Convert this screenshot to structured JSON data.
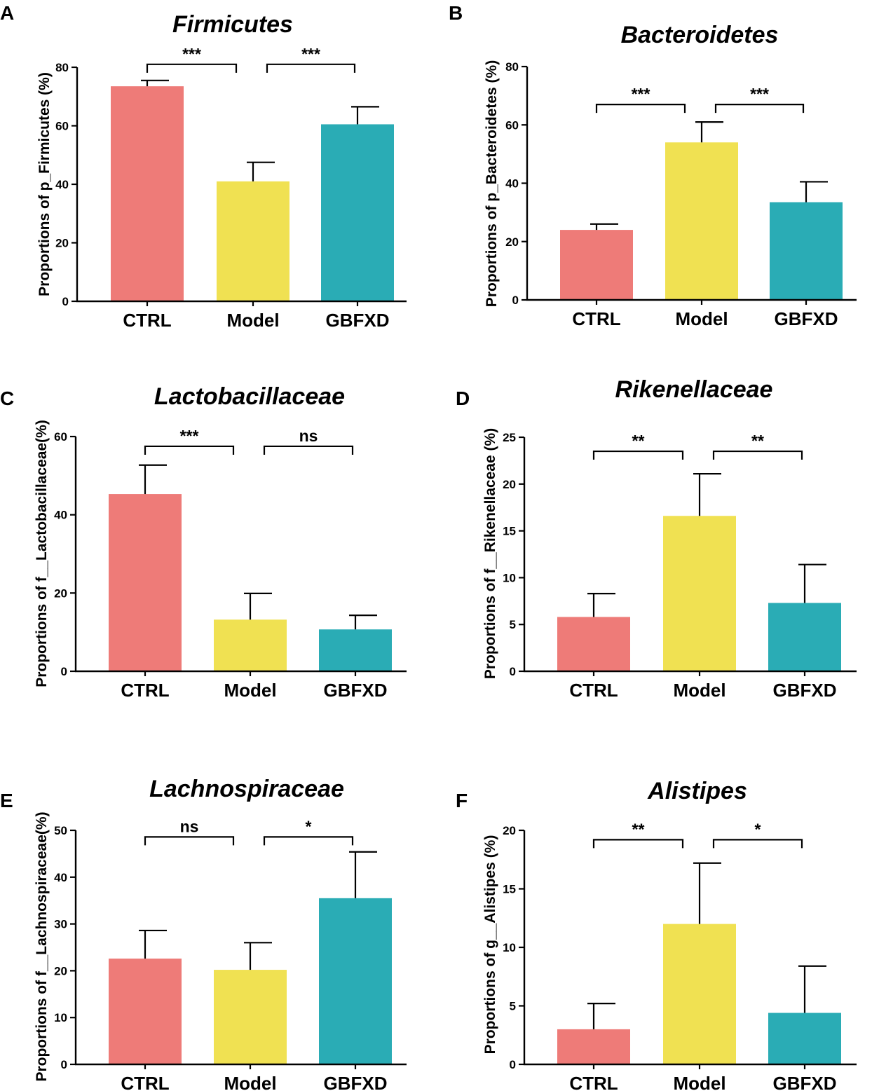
{
  "figure": {
    "categories": [
      "CTRL",
      "Model",
      "GBFXD"
    ],
    "colors": {
      "CTRL": "#ee7b78",
      "Model": "#f0e152",
      "GBFXD": "#2aacb5"
    }
  },
  "chart_data": [
    {
      "panel": "A",
      "type": "bar",
      "title": "Firmicutes",
      "ylabel": "Proportions of p_Firmicutes (%)",
      "categories": [
        "CTRL",
        "Model",
        "GBFXD"
      ],
      "values": [
        73.5,
        41,
        60.5
      ],
      "errors": [
        2,
        6.5,
        6
      ],
      "ylim": [
        0,
        80
      ],
      "yticks": [
        0,
        20,
        40,
        60,
        80
      ],
      "comparisons": [
        {
          "from": "CTRL",
          "to": "Model",
          "label": "***",
          "y": 81
        },
        {
          "from": "Model",
          "to": "GBFXD",
          "label": "***",
          "y": 81
        }
      ]
    },
    {
      "panel": "B",
      "type": "bar",
      "title": "Bacteroidetes",
      "ylabel": "Proportions of p_Bacteroidetes (%)",
      "categories": [
        "CTRL",
        "Model",
        "GBFXD"
      ],
      "values": [
        24,
        54,
        33.5
      ],
      "errors": [
        2,
        7,
        7
      ],
      "ylim": [
        0,
        80
      ],
      "yticks": [
        0,
        20,
        40,
        60,
        80
      ],
      "comparisons": [
        {
          "from": "CTRL",
          "to": "Model",
          "label": "***",
          "y": 67
        },
        {
          "from": "Model",
          "to": "GBFXD",
          "label": "***",
          "y": 67
        }
      ]
    },
    {
      "panel": "C",
      "type": "bar",
      "title": "Lactobacillaceae",
      "ylabel": "Proportions of f__Lactobacillaceae(%)",
      "categories": [
        "CTRL",
        "Model",
        "GBFXD"
      ],
      "values": [
        45.3,
        13.2,
        10.7
      ],
      "errors": [
        7.4,
        6.7,
        3.6
      ],
      "ylim": [
        0,
        60
      ],
      "yticks": [
        0,
        20,
        40,
        60
      ],
      "comparisons": [
        {
          "from": "CTRL",
          "to": "Model",
          "label": "***",
          "y": 57.5
        },
        {
          "from": "Model",
          "to": "GBFXD",
          "label": "ns",
          "y": 57.5
        }
      ]
    },
    {
      "panel": "D",
      "type": "bar",
      "title": "Rikenellaceae",
      "ylabel": "Proportions of f__Rikenellaceae (%)",
      "categories": [
        "CTRL",
        "Model",
        "GBFXD"
      ],
      "values": [
        5.8,
        16.6,
        7.3
      ],
      "errors": [
        2.5,
        4.5,
        4.1
      ],
      "ylim": [
        0,
        25
      ],
      "yticks": [
        0,
        5,
        10,
        15,
        20,
        25
      ],
      "comparisons": [
        {
          "from": "CTRL",
          "to": "Model",
          "label": "**",
          "y": 23.5
        },
        {
          "from": "Model",
          "to": "GBFXD",
          "label": "**",
          "y": 23.5
        }
      ]
    },
    {
      "panel": "E",
      "type": "bar",
      "title": "Lachnospiraceae",
      "ylabel": "Proportions of f__Lachnospiraceae(%)",
      "categories": [
        "CTRL",
        "Model",
        "GBFXD"
      ],
      "values": [
        22.6,
        20.2,
        35.5
      ],
      "errors": [
        6,
        5.8,
        9.9
      ],
      "ylim": [
        0,
        50
      ],
      "yticks": [
        0,
        10,
        20,
        30,
        40,
        50
      ],
      "comparisons": [
        {
          "from": "CTRL",
          "to": "Model",
          "label": "ns",
          "y": 48.6
        },
        {
          "from": "Model",
          "to": "GBFXD",
          "label": "*",
          "y": 48.6
        }
      ]
    },
    {
      "panel": "F",
      "type": "bar",
      "title": "Alistipes",
      "ylabel": "Proportions of g__Alistipes (%)",
      "categories": [
        "CTRL",
        "Model",
        "GBFXD"
      ],
      "values": [
        3,
        12,
        4.4
      ],
      "errors": [
        2.2,
        5.2,
        4
      ],
      "ylim": [
        0,
        20
      ],
      "yticks": [
        0,
        5,
        10,
        15,
        20
      ],
      "comparisons": [
        {
          "from": "CTRL",
          "to": "Model",
          "label": "**",
          "y": 19.2
        },
        {
          "from": "Model",
          "to": "GBFXD",
          "label": "*",
          "y": 19.2
        }
      ]
    }
  ]
}
